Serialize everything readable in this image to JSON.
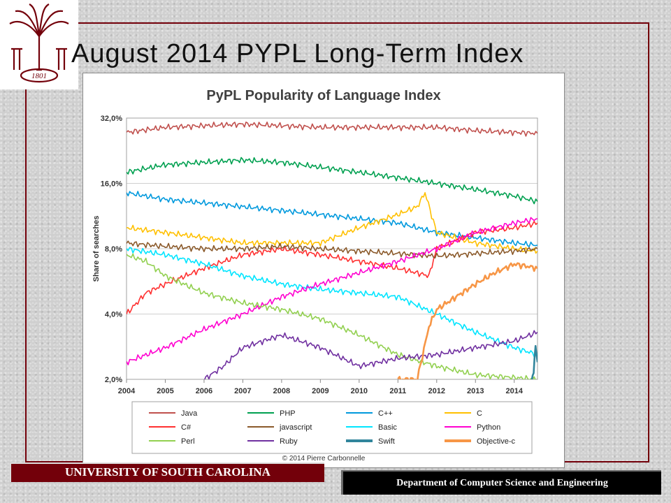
{
  "slide": {
    "title": "August 2014 PYPL Long-Term Index",
    "footer_left": "UNIVERSITY OF SOUTH CAROLINA",
    "footer_right": "Department of Computer Science and Engineering",
    "logo_text": "1801",
    "accent_color": "#73000a"
  },
  "chart_data": {
    "type": "line",
    "title": "PyPL Popularity of Language Index",
    "xlabel": "",
    "ylabel": "Share of searches",
    "y_scale": "log",
    "ylim": [
      2.0,
      32.0
    ],
    "xlim": [
      2004.0,
      2014.6
    ],
    "y_ticks": [
      2,
      4,
      8,
      16,
      32
    ],
    "y_tick_labels": [
      "2,0%",
      "4,0%",
      "8,0%",
      "16,0%",
      "32,0%"
    ],
    "x_ticks": [
      2004,
      2005,
      2006,
      2007,
      2008,
      2009,
      2010,
      2011,
      2012,
      2013,
      2014
    ],
    "x_tick_labels": [
      "2004",
      "2005",
      "2006",
      "2007",
      "2008",
      "2009",
      "2010",
      "2011",
      "2012",
      "2013",
      "2014"
    ],
    "grid": "horizontal",
    "legend_placement": "bottom",
    "footnote": "© 2014 Pierre Carbonnelle",
    "series": [
      {
        "name": "Java",
        "color": "#c0504d",
        "x": [
          2004.0,
          2005.0,
          2006.0,
          2007.0,
          2008.0,
          2009.0,
          2010.0,
          2011.0,
          2012.0,
          2013.0,
          2014.0,
          2014.6
        ],
        "y": [
          27.5,
          29.0,
          29.5,
          30.0,
          29.5,
          29.0,
          29.0,
          29.0,
          29.0,
          28.0,
          27.5,
          27.2
        ]
      },
      {
        "name": "PHP",
        "color": "#00a050",
        "x": [
          2004.0,
          2005.0,
          2006.0,
          2007.0,
          2008.0,
          2009.0,
          2010.0,
          2011.0,
          2012.0,
          2013.0,
          2014.0,
          2014.6
        ],
        "y": [
          18.0,
          19.5,
          20.0,
          20.5,
          20.0,
          19.0,
          18.0,
          17.0,
          16.0,
          15.0,
          14.0,
          13.2
        ]
      },
      {
        "name": "C++",
        "color": "#0099dd",
        "x": [
          2004.0,
          2005.0,
          2006.0,
          2007.0,
          2008.0,
          2009.0,
          2010.0,
          2011.0,
          2012.0,
          2013.0,
          2014.0,
          2014.6
        ],
        "y": [
          14.5,
          13.5,
          13.0,
          12.5,
          12.0,
          11.5,
          11.0,
          10.5,
          9.5,
          9.0,
          8.5,
          8.3
        ]
      },
      {
        "name": "C",
        "color": "#ffc000",
        "x": [
          2004.0,
          2005.0,
          2006.0,
          2007.0,
          2008.0,
          2009.0,
          2010.0,
          2011.0,
          2011.5,
          2011.7,
          2012.0,
          2013.0,
          2014.0,
          2014.6
        ],
        "y": [
          10.0,
          9.5,
          9.0,
          8.5,
          8.5,
          8.5,
          10.0,
          11.5,
          12.5,
          14.5,
          9.5,
          8.5,
          8.0,
          7.8
        ]
      },
      {
        "name": "C#",
        "color": "#ff3030",
        "x": [
          2004.0,
          2004.5,
          2005.0,
          2006.0,
          2007.0,
          2008.0,
          2009.0,
          2010.0,
          2011.0,
          2011.8,
          2012.0,
          2013.0,
          2014.0,
          2014.6
        ],
        "y": [
          4.0,
          5.0,
          5.5,
          6.5,
          7.5,
          8.0,
          7.5,
          7.0,
          6.5,
          6.0,
          8.0,
          9.5,
          10.0,
          10.5
        ]
      },
      {
        "name": "javascript",
        "color": "#8b5a2b",
        "x": [
          2004.0,
          2005.0,
          2006.0,
          2007.0,
          2008.0,
          2009.0,
          2010.0,
          2011.0,
          2012.0,
          2013.0,
          2014.0,
          2014.6
        ],
        "y": [
          8.5,
          8.2,
          8.0,
          8.0,
          8.2,
          8.0,
          7.8,
          7.6,
          7.4,
          7.6,
          7.8,
          8.0
        ]
      },
      {
        "name": "Basic",
        "color": "#00e5ff",
        "x": [
          2004.0,
          2005.0,
          2006.0,
          2007.0,
          2008.0,
          2009.0,
          2010.0,
          2011.0,
          2012.0,
          2013.0,
          2014.0,
          2014.6
        ],
        "y": [
          8.0,
          7.5,
          6.8,
          6.0,
          5.5,
          5.2,
          5.0,
          4.8,
          4.0,
          3.3,
          2.8,
          2.6
        ]
      },
      {
        "name": "Python",
        "color": "#ff00d0",
        "x": [
          2004.0,
          2005.0,
          2006.0,
          2007.0,
          2008.0,
          2009.0,
          2010.0,
          2011.0,
          2012.0,
          2013.0,
          2014.0,
          2014.6
        ],
        "y": [
          2.4,
          2.8,
          3.4,
          4.0,
          4.8,
          5.5,
          6.2,
          7.0,
          8.0,
          9.5,
          10.5,
          11.0
        ]
      },
      {
        "name": "Perl",
        "color": "#92d050",
        "x": [
          2004.0,
          2004.5,
          2005.0,
          2006.0,
          2007.0,
          2008.0,
          2009.0,
          2010.0,
          2011.0,
          2012.0,
          2013.0,
          2014.6
        ],
        "y": [
          7.5,
          7.0,
          6.0,
          5.0,
          4.5,
          4.2,
          3.8,
          3.2,
          2.6,
          2.3,
          2.1,
          2.0
        ]
      },
      {
        "name": "Ruby",
        "color": "#7030a0",
        "x": [
          2006.0,
          2006.5,
          2007.0,
          2008.0,
          2009.0,
          2010.0,
          2011.0,
          2012.0,
          2013.0,
          2014.0,
          2014.6
        ],
        "y": [
          2.0,
          2.3,
          2.8,
          3.2,
          2.8,
          2.3,
          2.5,
          2.6,
          2.8,
          3.0,
          3.3
        ]
      },
      {
        "name": "Swift",
        "color": "#31859c",
        "x": [
          2014.45,
          2014.5,
          2014.55,
          2014.6
        ],
        "y": [
          2.0,
          2.2,
          2.8,
          2.4
        ]
      },
      {
        "name": "Objective-c",
        "color": "#f79646",
        "x": [
          2011.0,
          2011.5,
          2011.8,
          2012.0,
          2012.5,
          2013.0,
          2013.5,
          2014.0,
          2014.6
        ],
        "y": [
          2.0,
          2.0,
          3.5,
          4.2,
          4.8,
          5.5,
          6.2,
          6.8,
          6.5
        ]
      }
    ]
  }
}
